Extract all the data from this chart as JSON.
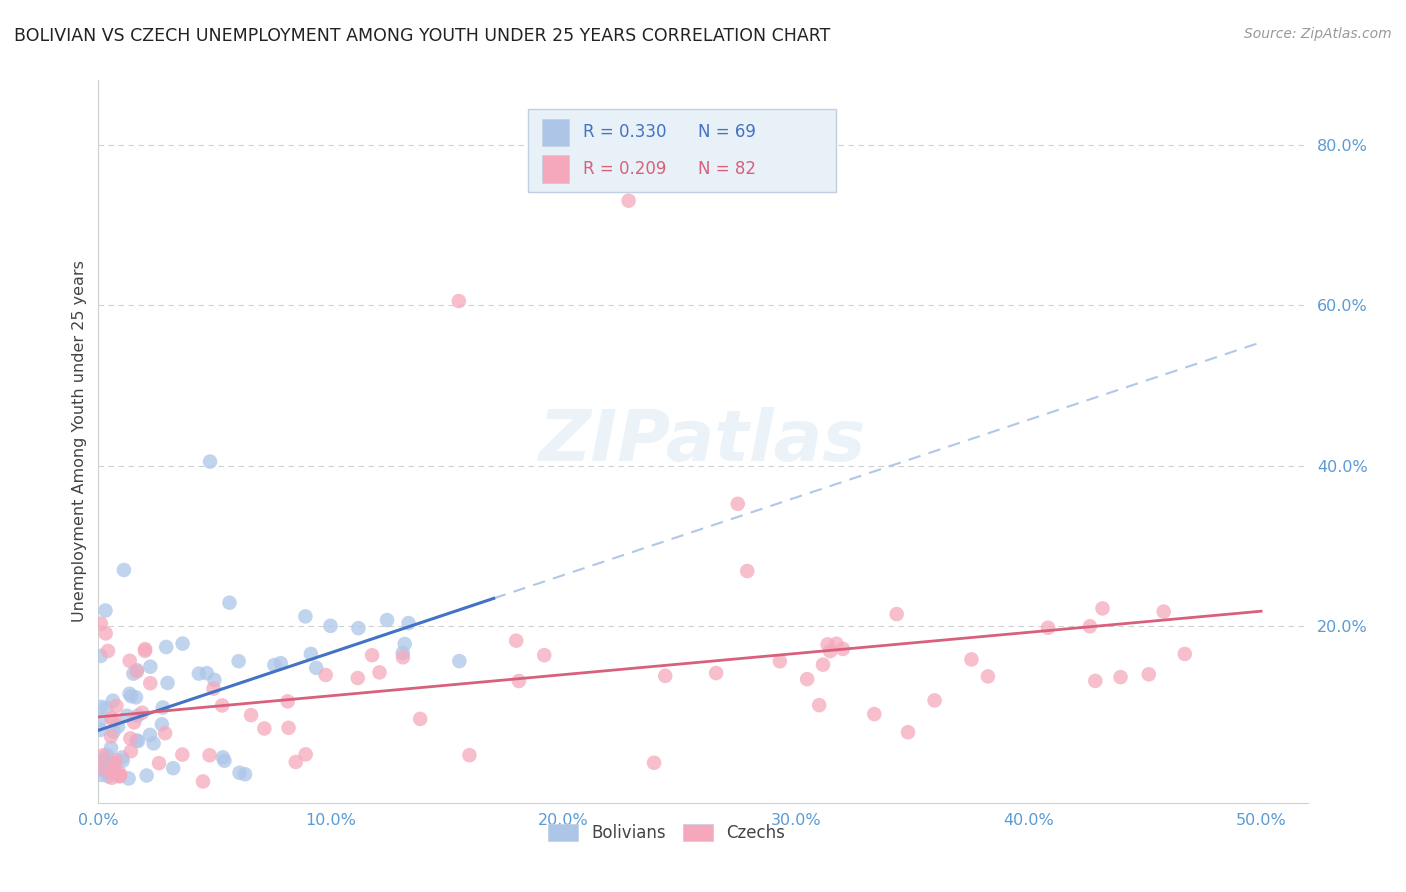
{
  "title": "BOLIVIAN VS CZECH UNEMPLOYMENT AMONG YOUTH UNDER 25 YEARS CORRELATION CHART",
  "source": "Source: ZipAtlas.com",
  "ylabel": "Unemployment Among Youth under 25 years",
  "xlim": [
    0.0,
    0.52
  ],
  "ylim": [
    -0.02,
    0.88
  ],
  "xticks": [
    0.0,
    0.1,
    0.2,
    0.3,
    0.4,
    0.5
  ],
  "yticks_right": [
    0.2,
    0.4,
    0.6,
    0.8
  ],
  "bolivia_R": 0.33,
  "bolivia_N": 69,
  "czech_R": 0.209,
  "czech_N": 82,
  "bolivia_color": "#adc6e8",
  "czech_color": "#f5a8bc",
  "bolivia_line_color": "#4472c4",
  "czech_line_color": "#d9607a",
  "dashed_line_color": "#b0c8e8",
  "axis_color": "#5b9bd5",
  "grid_color": "#d0d0d0",
  "background_color": "#ffffff",
  "title_color": "#222222",
  "ylabel_color": "#444444",
  "source_color": "#999999",
  "watermark_color": "#dce8f4",
  "watermark_alpha": 0.55,
  "legend_box_color": "#e8f0f8",
  "legend_border_color": "#c0d0e0"
}
